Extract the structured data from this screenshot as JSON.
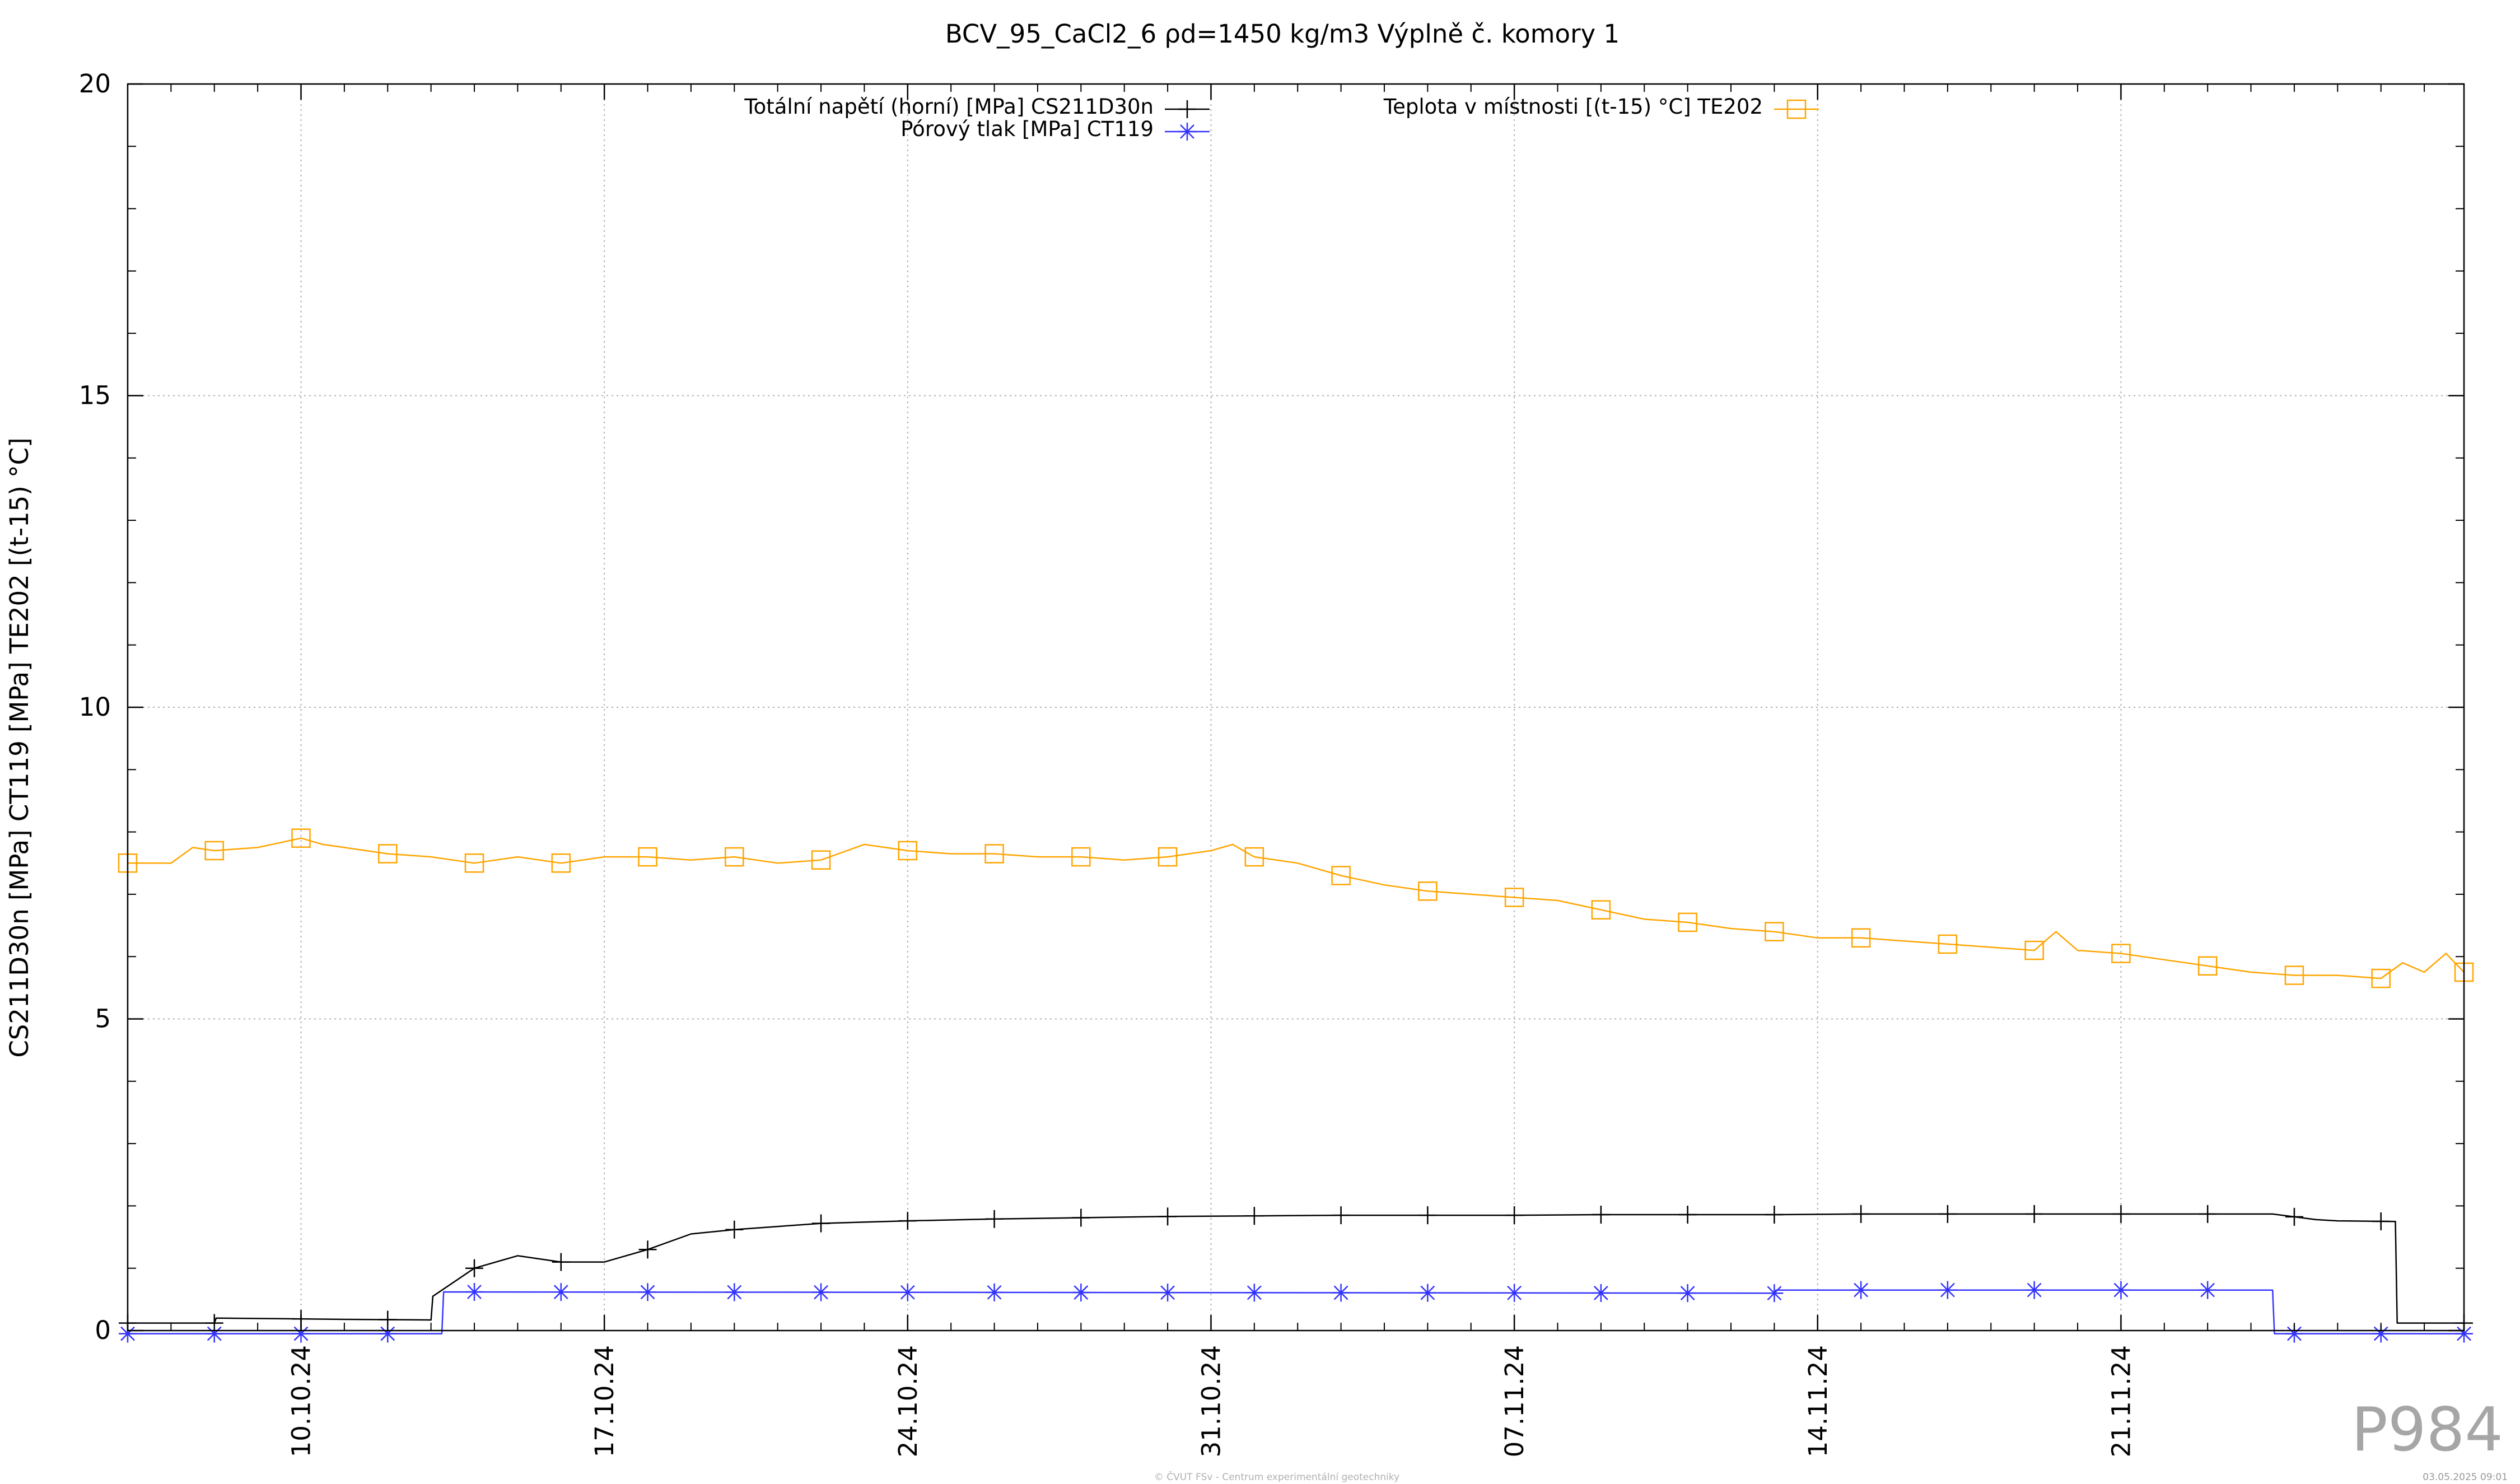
{
  "chart_data": {
    "type": "line",
    "title": "BCV_95_CaCl2_6 ρd=1450 kg/m3 Výplně č. komory 1",
    "ylabel": "CS211D30n [MPa] CT119 [MPa] TE202 [(t-15) °C]",
    "xlabel": "",
    "ylim": [
      0,
      20
    ],
    "yticks": [
      0,
      5,
      10,
      15,
      20
    ],
    "xlim": [
      "2024-10-06T00:00",
      "2024-11-28T22:00"
    ],
    "xticks": [
      {
        "date": "2024-10-10",
        "label": "10.10.24"
      },
      {
        "date": "2024-10-17",
        "label": "17.10.24"
      },
      {
        "date": "2024-10-24",
        "label": "24.10.24"
      },
      {
        "date": "2024-10-31",
        "label": "31.10.24"
      },
      {
        "date": "2024-11-07",
        "label": "07.11.24"
      },
      {
        "date": "2024-11-14",
        "label": "14.11.24"
      },
      {
        "date": "2024-11-21",
        "label": "21.11.24"
      }
    ],
    "grid": true,
    "legend_position": "top",
    "series": [
      {
        "name": "Totální napětí (horní) [MPa] CS211D30n",
        "color": "#000000",
        "marker": "plus",
        "x": [
          "2024-10-06T00:00",
          "2024-10-08T00:00",
          "2024-10-08T01:00",
          "2024-10-11T00:00",
          "2024-10-13T00:00",
          "2024-10-13T01:00",
          "2024-10-14T00:00",
          "2024-10-15T00:00",
          "2024-10-16T00:00",
          "2024-10-17T00:00",
          "2024-10-18T00:00",
          "2024-10-19T00:00",
          "2024-10-20T00:00",
          "2024-10-22T00:00",
          "2024-10-24T00:00",
          "2024-10-26T00:00",
          "2024-10-28T00:00",
          "2024-10-30T00:00",
          "2024-11-01T00:00",
          "2024-11-03T00:00",
          "2024-11-05T00:00",
          "2024-11-07T00:00",
          "2024-11-09T00:00",
          "2024-11-11T00:00",
          "2024-11-13T00:00",
          "2024-11-15T00:00",
          "2024-11-17T00:00",
          "2024-11-19T00:00",
          "2024-11-21T00:00",
          "2024-11-22T00:00",
          "2024-11-23T00:00",
          "2024-11-24T12:00",
          "2024-11-25T12:00",
          "2024-11-26T00:00",
          "2024-11-27T08:00",
          "2024-11-27T09:00",
          "2024-11-28T22:00"
        ],
        "values": [
          0.12,
          0.12,
          0.2,
          0.18,
          0.17,
          0.55,
          1.0,
          1.2,
          1.1,
          1.1,
          1.3,
          1.55,
          1.62,
          1.72,
          1.76,
          1.79,
          1.81,
          1.83,
          1.84,
          1.85,
          1.85,
          1.85,
          1.86,
          1.86,
          1.86,
          1.87,
          1.87,
          1.87,
          1.87,
          1.87,
          1.87,
          1.87,
          1.78,
          1.76,
          1.75,
          0.12,
          0.12
        ],
        "markers_x": [
          "2024-10-06T00:00",
          "2024-10-08T00:00",
          "2024-10-10T00:00",
          "2024-10-12T00:00",
          "2024-10-14T00:00",
          "2024-10-16T00:00",
          "2024-10-18T00:00",
          "2024-10-20T00:00",
          "2024-10-22T00:00",
          "2024-10-24T00:00",
          "2024-10-26T00:00",
          "2024-10-28T00:00",
          "2024-10-30T00:00",
          "2024-11-01T00:00",
          "2024-11-03T00:00",
          "2024-11-05T00:00",
          "2024-11-07T00:00",
          "2024-11-09T00:00",
          "2024-11-11T00:00",
          "2024-11-13T00:00",
          "2024-11-15T00:00",
          "2024-11-17T00:00",
          "2024-11-19T00:00",
          "2024-11-21T00:00",
          "2024-11-23T00:00",
          "2024-11-25T00:00",
          "2024-11-27T00:00",
          "2024-11-28T22:00"
        ]
      },
      {
        "name": "Pórový tlak [MPa] CT119",
        "color": "#3333ff",
        "marker": "star",
        "x": [
          "2024-10-06T00:00",
          "2024-10-13T06:00",
          "2024-10-13T07:00",
          "2024-11-13T00:00",
          "2024-11-13T01:00",
          "2024-11-24T12:00",
          "2024-11-24T13:00",
          "2024-11-28T22:00"
        ],
        "values": [
          -0.05,
          -0.05,
          0.62,
          0.6,
          0.65,
          0.65,
          -0.05,
          -0.05
        ],
        "markers_x": [
          "2024-10-06T00:00",
          "2024-10-08T00:00",
          "2024-10-10T00:00",
          "2024-10-12T00:00",
          "2024-10-14T00:00",
          "2024-10-16T00:00",
          "2024-10-18T00:00",
          "2024-10-20T00:00",
          "2024-10-22T00:00",
          "2024-10-24T00:00",
          "2024-10-26T00:00",
          "2024-10-28T00:00",
          "2024-10-30T00:00",
          "2024-11-01T00:00",
          "2024-11-03T00:00",
          "2024-11-05T00:00",
          "2024-11-07T00:00",
          "2024-11-09T00:00",
          "2024-11-11T00:00",
          "2024-11-13T00:00",
          "2024-11-15T00:00",
          "2024-11-17T00:00",
          "2024-11-19T00:00",
          "2024-11-21T00:00",
          "2024-11-23T00:00",
          "2024-11-25T00:00",
          "2024-11-27T00:00",
          "2024-11-28T22:00"
        ]
      },
      {
        "name": "Teplota v místnosti [(t-15) °C] TE202",
        "color": "#ffa500",
        "marker": "square",
        "x": [
          "2024-10-06T00:00",
          "2024-10-07T00:00",
          "2024-10-07T12:00",
          "2024-10-08T00:00",
          "2024-10-09T00:00",
          "2024-10-10T00:00",
          "2024-10-10T12:00",
          "2024-10-11T00:00",
          "2024-10-12T00:00",
          "2024-10-13T00:00",
          "2024-10-14T00:00",
          "2024-10-15T00:00",
          "2024-10-16T00:00",
          "2024-10-17T00:00",
          "2024-10-18T00:00",
          "2024-10-19T00:00",
          "2024-10-20T00:00",
          "2024-10-21T00:00",
          "2024-10-22T00:00",
          "2024-10-23T00:00",
          "2024-10-24T00:00",
          "2024-10-25T00:00",
          "2024-10-26T00:00",
          "2024-10-27T00:00",
          "2024-10-28T00:00",
          "2024-10-29T00:00",
          "2024-10-30T00:00",
          "2024-10-31T00:00",
          "2024-10-31T12:00",
          "2024-11-01T00:00",
          "2024-11-02T00:00",
          "2024-11-03T00:00",
          "2024-11-04T00:00",
          "2024-11-05T00:00",
          "2024-11-06T00:00",
          "2024-11-07T00:00",
          "2024-11-08T00:00",
          "2024-11-09T00:00",
          "2024-11-10T00:00",
          "2024-11-11T00:00",
          "2024-11-12T00:00",
          "2024-11-13T00:00",
          "2024-11-14T00:00",
          "2024-11-15T00:00",
          "2024-11-16T00:00",
          "2024-11-17T00:00",
          "2024-11-18T00:00",
          "2024-11-19T00:00",
          "2024-11-19T12:00",
          "2024-11-20T00:00",
          "2024-11-21T00:00",
          "2024-11-22T00:00",
          "2024-11-23T00:00",
          "2024-11-24T00:00",
          "2024-11-25T00:00",
          "2024-11-26T00:00",
          "2024-11-27T00:00",
          "2024-11-27T12:00",
          "2024-11-28T00:00",
          "2024-11-28T12:00",
          "2024-11-28T22:00"
        ],
        "values": [
          7.5,
          7.5,
          7.75,
          7.7,
          7.75,
          7.9,
          7.8,
          7.75,
          7.65,
          7.6,
          7.5,
          7.6,
          7.5,
          7.6,
          7.6,
          7.55,
          7.6,
          7.5,
          7.55,
          7.8,
          7.7,
          7.65,
          7.65,
          7.6,
          7.6,
          7.55,
          7.6,
          7.7,
          7.8,
          7.6,
          7.5,
          7.3,
          7.15,
          7.05,
          7.0,
          6.95,
          6.9,
          6.75,
          6.6,
          6.55,
          6.45,
          6.4,
          6.3,
          6.3,
          6.25,
          6.2,
          6.15,
          6.1,
          6.4,
          6.1,
          6.05,
          5.95,
          5.85,
          5.75,
          5.7,
          5.7,
          5.65,
          5.9,
          5.75,
          6.05,
          5.75
        ],
        "markers_x": [
          "2024-10-06T00:00",
          "2024-10-08T00:00",
          "2024-10-10T00:00",
          "2024-10-12T00:00",
          "2024-10-14T00:00",
          "2024-10-16T00:00",
          "2024-10-18T00:00",
          "2024-10-20T00:00",
          "2024-10-22T00:00",
          "2024-10-24T00:00",
          "2024-10-26T00:00",
          "2024-10-28T00:00",
          "2024-10-30T00:00",
          "2024-11-01T00:00",
          "2024-11-03T00:00",
          "2024-11-05T00:00",
          "2024-11-07T00:00",
          "2024-11-09T00:00",
          "2024-11-11T00:00",
          "2024-11-13T00:00",
          "2024-11-15T00:00",
          "2024-11-17T00:00",
          "2024-11-19T00:00",
          "2024-11-21T00:00",
          "2024-11-23T00:00",
          "2024-11-25T00:00",
          "2024-11-27T00:00",
          "2024-11-28T22:00"
        ]
      }
    ]
  },
  "watermark": "P984",
  "footer_text": "© ČVUT FSv - Centrum experimentální geotechniky",
  "footer_date": "03.05.2025 09:01"
}
